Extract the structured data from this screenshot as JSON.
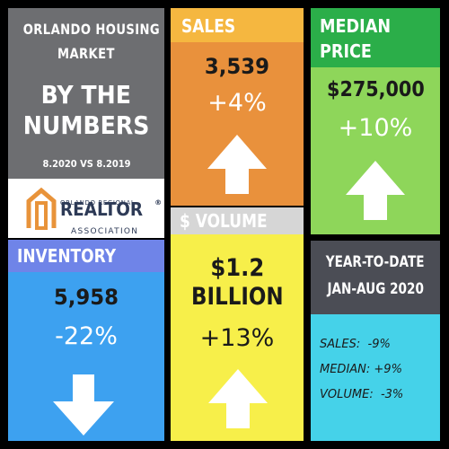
{
  "colors": {
    "background": "#000000",
    "title_panel": "#6d6e71",
    "logo_panel": "#ffffff",
    "sales_header": "#f5b740",
    "sales_body": "#e9913c",
    "median_header": "#2bae49",
    "median_body": "#8ed65a",
    "volume_header": "#d6d6d6",
    "volume_body": "#f7ef4a",
    "inventory_header": "#6f84e8",
    "inventory_body": "#3da1f0",
    "ytd_header": "#4b4d55",
    "ytd_body": "#45d2e9",
    "text_light": "#ffffff",
    "text_dark": "#1a1a1a",
    "logo_orange": "#e8933a",
    "logo_navy": "#2d3a56"
  },
  "title": {
    "line1": "ORLANDO HOUSING",
    "line2": "MARKET",
    "line3": "BY THE",
    "line4": "NUMBERS",
    "dates": "8.2020 VS 8.2019"
  },
  "logo": {
    "top": "ORLANDO REGIONAL",
    "main": "REALTOR",
    "reg": "®",
    "sub": "ASSOCIATION"
  },
  "sales": {
    "header": "SALES",
    "value": "3,539",
    "change": "+4%",
    "direction": "up"
  },
  "median": {
    "header_line1": "MEDIAN",
    "header_line2": "PRICE",
    "value": "$275,000",
    "change": "+10%",
    "direction": "up"
  },
  "volume": {
    "header": "$ VOLUME",
    "value_line1": "$1.2",
    "value_line2": "BILLION",
    "change": "+13%",
    "direction": "up"
  },
  "inventory": {
    "header": "INVENTORY",
    "value": "5,958",
    "change": "-22%",
    "direction": "down"
  },
  "ytd": {
    "header_line1": "YEAR-TO-DATE",
    "header_line2": "JAN-AUG 2020",
    "sales": "SALES:  -9%",
    "median": "MEDIAN: +9%",
    "volume": "VOLUME:  -3%"
  }
}
